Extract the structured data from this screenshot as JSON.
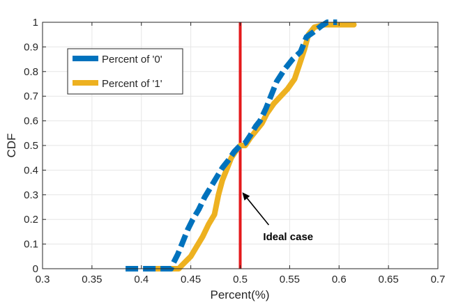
{
  "chart_data": {
    "type": "line",
    "title": "",
    "xlabel": "Percent(%)",
    "ylabel": "CDF",
    "xlim": [
      0.3,
      0.7
    ],
    "ylim": [
      0,
      1
    ],
    "xticks": [
      0.3,
      0.35,
      0.4,
      0.45,
      0.5,
      0.55,
      0.6,
      0.65,
      0.7
    ],
    "xtick_labels": [
      "0.3",
      "0.35",
      "0.4",
      "0.45",
      "0.5",
      "0.55",
      "0.6",
      "0.65",
      "0.7"
    ],
    "yticks": [
      0,
      0.1,
      0.2,
      0.3,
      0.4,
      0.5,
      0.6,
      0.7,
      0.8,
      0.9,
      1
    ],
    "ytick_labels": [
      "0",
      "0.1",
      "0.2",
      "0.3",
      "0.4",
      "0.5",
      "0.6",
      "0.7",
      "0.8",
      "0.9",
      "1"
    ],
    "grid": true,
    "legend_position": "top-left",
    "series": [
      {
        "name": "Percent of '0'",
        "color": "#0072BD",
        "style": "dashed",
        "points": [
          [
            0.384,
            0.0
          ],
          [
            0.43,
            0.0
          ],
          [
            0.432,
            0.02
          ],
          [
            0.437,
            0.06
          ],
          [
            0.442,
            0.11
          ],
          [
            0.447,
            0.16
          ],
          [
            0.452,
            0.2
          ],
          [
            0.458,
            0.24
          ],
          [
            0.464,
            0.29
          ],
          [
            0.47,
            0.33
          ],
          [
            0.476,
            0.37
          ],
          [
            0.482,
            0.41
          ],
          [
            0.488,
            0.44
          ],
          [
            0.494,
            0.475
          ],
          [
            0.5,
            0.5
          ],
          [
            0.505,
            0.51
          ],
          [
            0.51,
            0.54
          ],
          [
            0.516,
            0.58
          ],
          [
            0.52,
            0.6
          ],
          [
            0.526,
            0.65
          ],
          [
            0.531,
            0.7
          ],
          [
            0.537,
            0.76
          ],
          [
            0.545,
            0.81
          ],
          [
            0.553,
            0.85
          ],
          [
            0.561,
            0.88
          ],
          [
            0.567,
            0.94
          ],
          [
            0.574,
            0.96
          ],
          [
            0.582,
            0.985
          ],
          [
            0.588,
            1.0
          ],
          [
            0.598,
            1.0
          ]
        ]
      },
      {
        "name": "Percent of '1'",
        "color": "#EDB120",
        "style": "solid",
        "points": [
          [
            0.41,
            0.0
          ],
          [
            0.438,
            0.0
          ],
          [
            0.44,
            0.01
          ],
          [
            0.445,
            0.03
          ],
          [
            0.45,
            0.05
          ],
          [
            0.456,
            0.09
          ],
          [
            0.462,
            0.13
          ],
          [
            0.468,
            0.18
          ],
          [
            0.474,
            0.22
          ],
          [
            0.478,
            0.3
          ],
          [
            0.482,
            0.36
          ],
          [
            0.487,
            0.41
          ],
          [
            0.491,
            0.45
          ],
          [
            0.496,
            0.48
          ],
          [
            0.5,
            0.5
          ],
          [
            0.505,
            0.5
          ],
          [
            0.51,
            0.53
          ],
          [
            0.516,
            0.56
          ],
          [
            0.522,
            0.59
          ],
          [
            0.527,
            0.63
          ],
          [
            0.534,
            0.67
          ],
          [
            0.541,
            0.7
          ],
          [
            0.548,
            0.73
          ],
          [
            0.555,
            0.77
          ],
          [
            0.56,
            0.83
          ],
          [
            0.565,
            0.89
          ],
          [
            0.569,
            0.95
          ],
          [
            0.575,
            0.98
          ],
          [
            0.585,
            0.99
          ],
          [
            0.6,
            0.99
          ],
          [
            0.615,
            0.99
          ]
        ]
      }
    ],
    "reference_line": {
      "name": "Ideal case",
      "x": 0.5,
      "color": "#E41A1C"
    },
    "annotation": {
      "text": "Ideal case",
      "point": [
        0.5,
        0.31
      ],
      "text_pos": [
        0.519,
        0.155
      ]
    }
  }
}
